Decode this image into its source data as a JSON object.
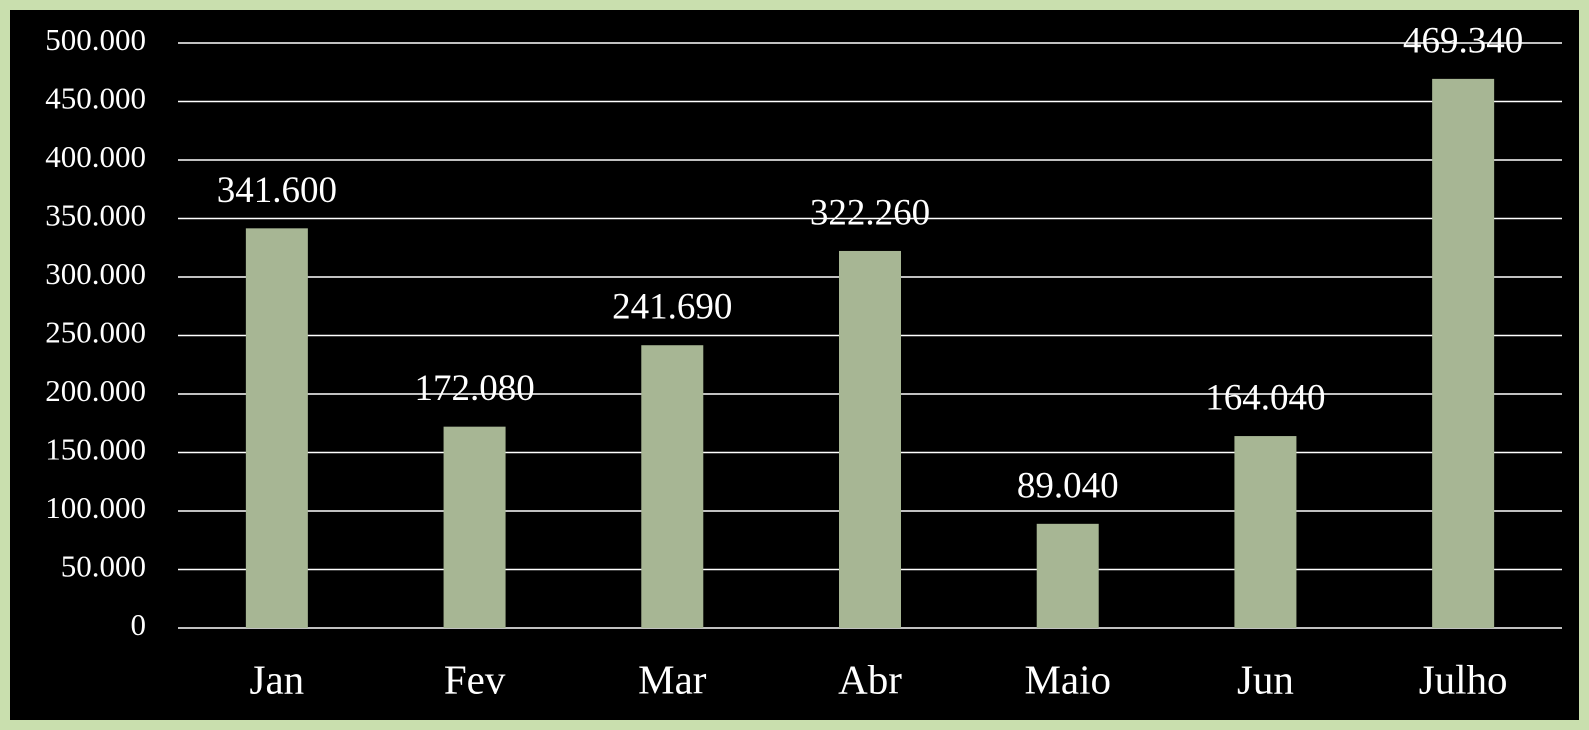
{
  "chart_data": {
    "type": "bar",
    "categories": [
      "Jan",
      "Fev",
      "Mar",
      "Abr",
      "Maio",
      "Jun",
      "Julho"
    ],
    "values": [
      341600,
      172080,
      241690,
      322260,
      89040,
      164040,
      469340
    ],
    "value_labels": [
      "341.600",
      "172.080",
      "241.690",
      "322.260",
      "89.040",
      "164.040",
      "469.340"
    ],
    "color": "#a7b694",
    "ylim": [
      0,
      500000
    ],
    "yticks": [
      0,
      {
        "value": 50000,
        "label": "50.000"
      },
      {
        "value": 100000,
        "label": "100.000"
      },
      {
        "value": 150000,
        "label": "150.000"
      },
      {
        "value": 200000,
        "label": "200.000"
      },
      {
        "value": 250000,
        "label": "250.000"
      },
      {
        "value": 300000,
        "label": "300.000"
      },
      {
        "value": 350000,
        "label": "350.000"
      },
      {
        "value": 400000,
        "label": "400.000"
      },
      {
        "value": 450000,
        "label": "450.000"
      },
      {
        "value": 500000,
        "label": "500.000"
      }
    ],
    "grid": true
  }
}
